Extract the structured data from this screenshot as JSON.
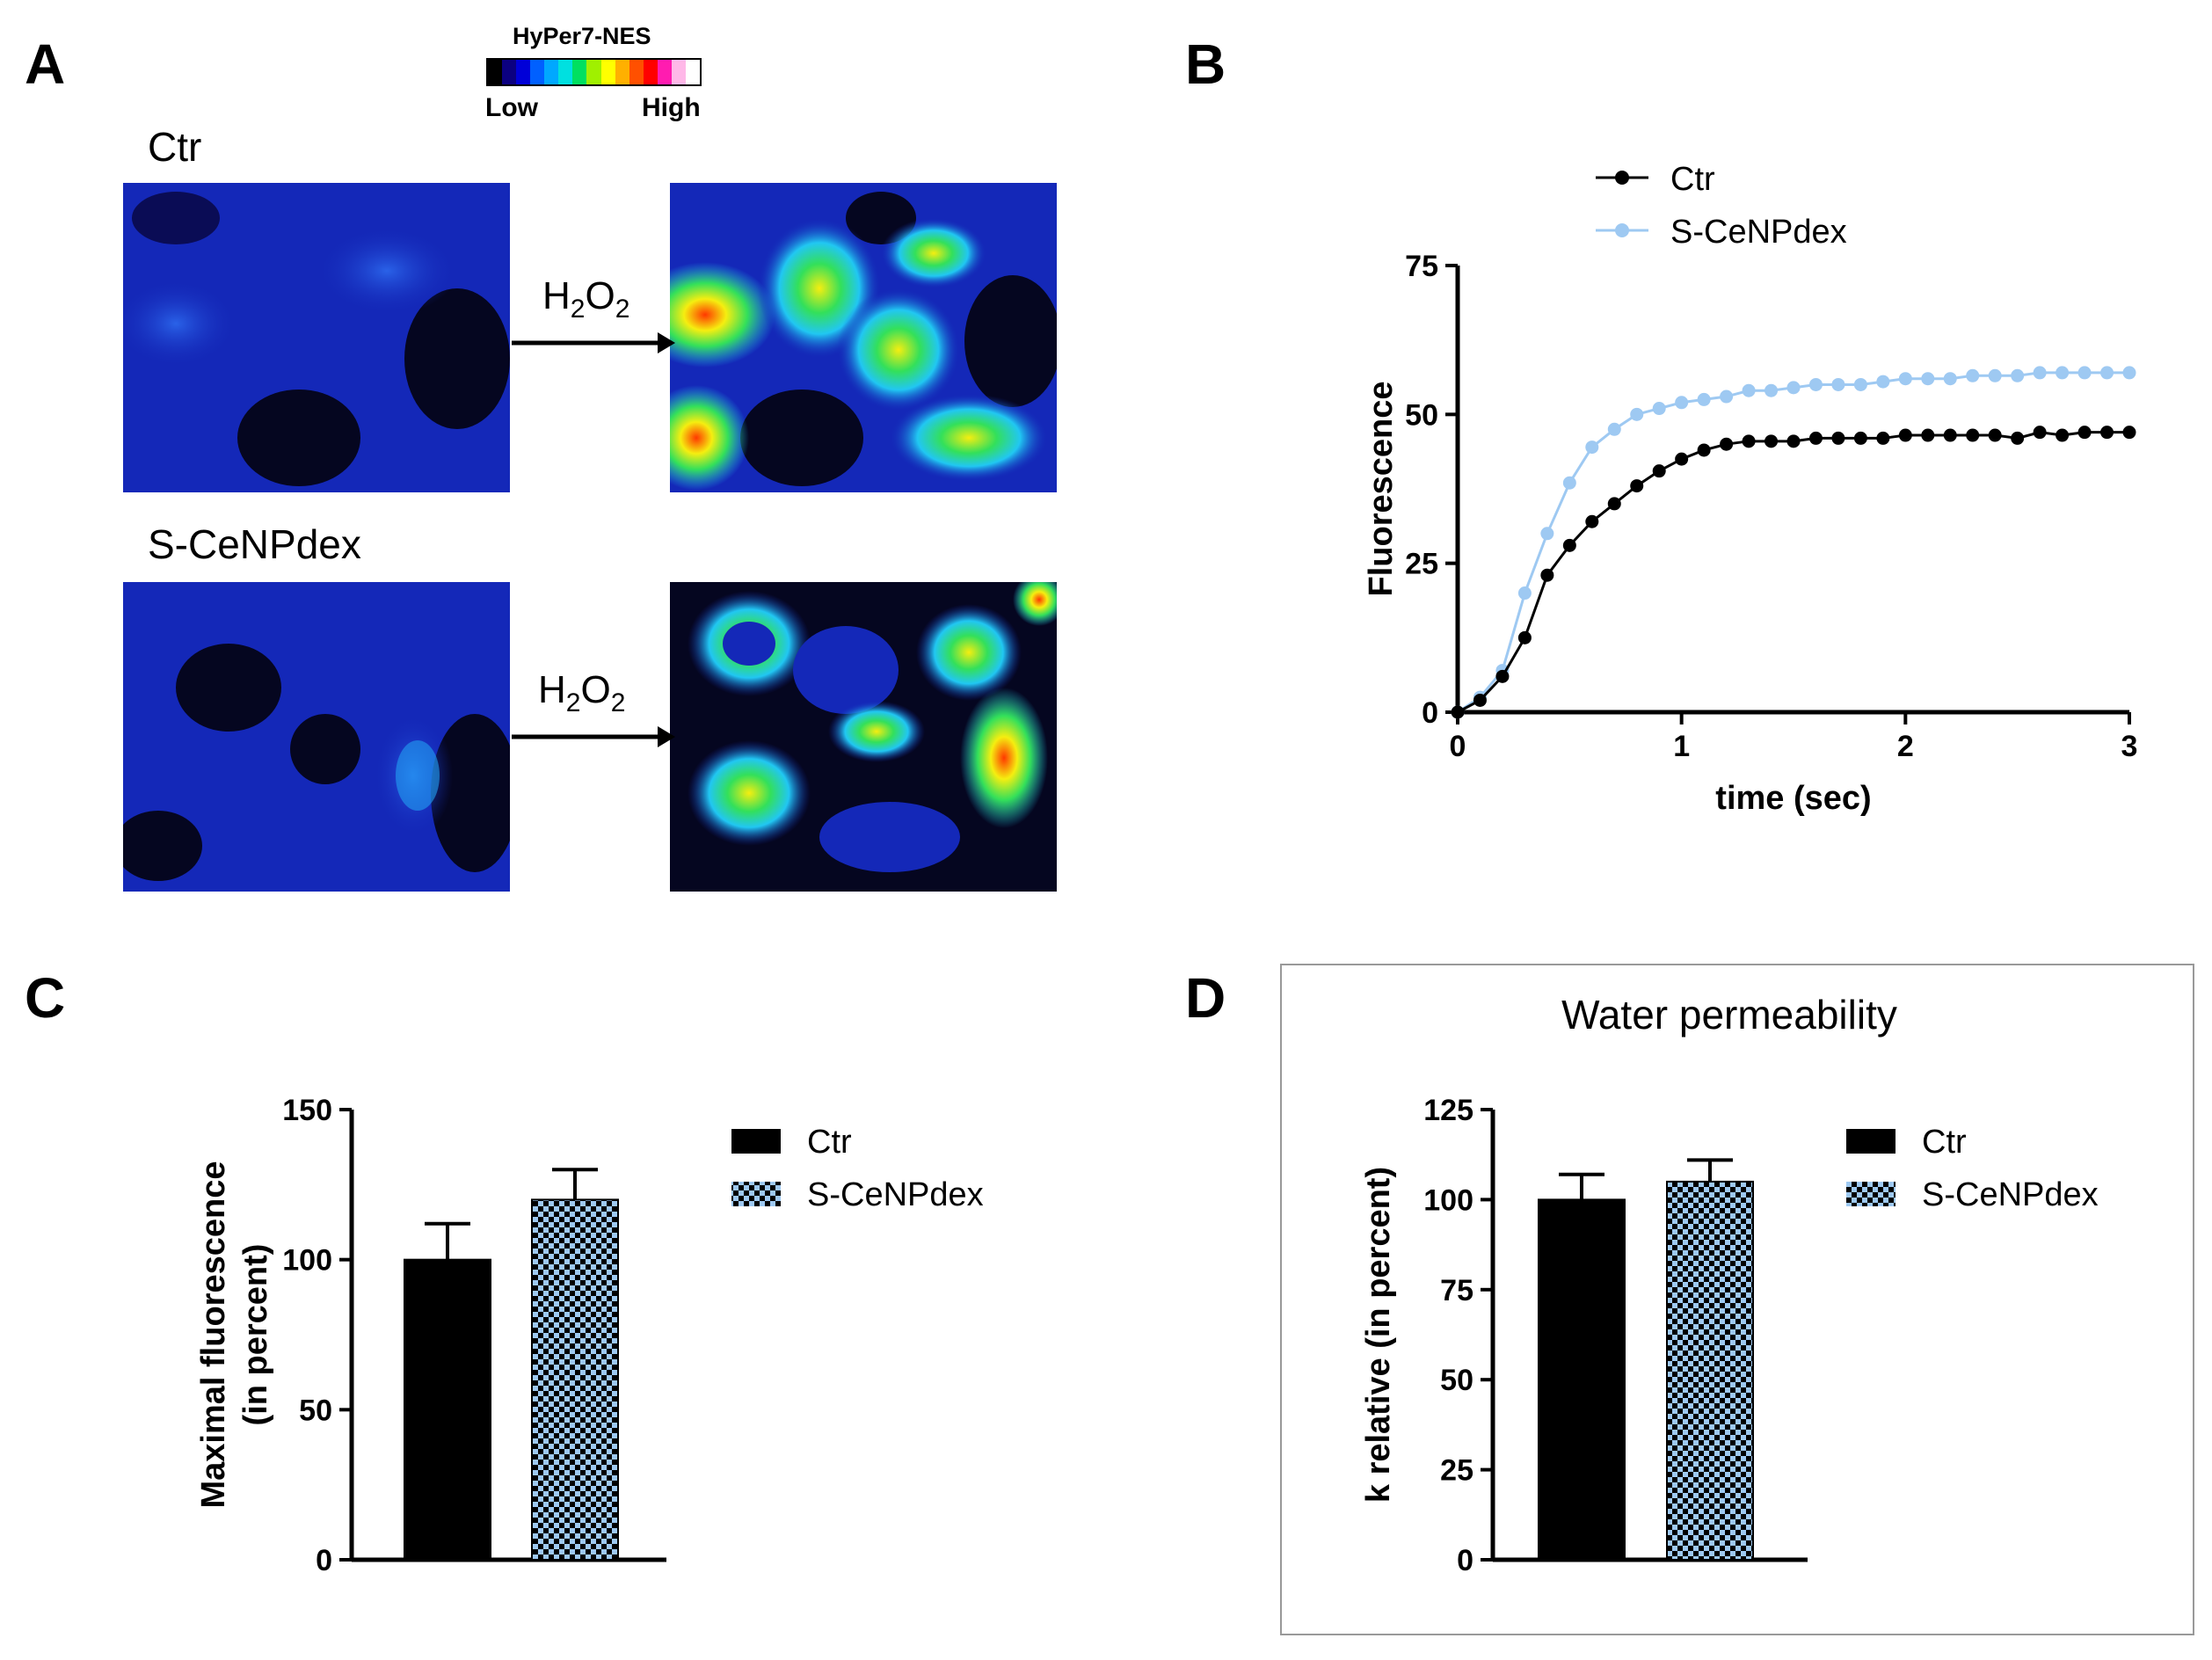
{
  "panels": {
    "a": "A",
    "b": "B",
    "c": "C",
    "d": "D"
  },
  "panel_a": {
    "colorbar_title": "HyPer7-NES",
    "colorbar_low": "Low",
    "colorbar_high": "High",
    "colorbar_colors": [
      "#000000",
      "#0b0080",
      "#0000d8",
      "#0060ff",
      "#00a8ff",
      "#00e0e0",
      "#00e060",
      "#a0f000",
      "#ffff00",
      "#ffb000",
      "#ff5000",
      "#ff0000",
      "#ff1cb0",
      "#ffb8e8",
      "#ffffff"
    ],
    "row1_label": "Ctr",
    "row2_label": "S-CeNPdex",
    "stimulus": "H",
    "stimulus_sub1": "2",
    "stimulus_mid": "O",
    "stimulus_sub2": "2",
    "heatmap_palette": {
      "background": "#050620",
      "low": "#1428b8",
      "mid": "#21c7f2",
      "high": "#f5ee10",
      "peak": "#ff3800"
    }
  },
  "chart_data": [
    {
      "type": "line",
      "panel": "B",
      "xlabel": "time (sec)",
      "ylabel": "Fluorescence",
      "xlim": [
        0,
        3
      ],
      "ylim": [
        0,
        75
      ],
      "xticks": [
        0,
        1,
        2,
        3
      ],
      "yticks": [
        0,
        25,
        50,
        75
      ],
      "legend_position": "top-left",
      "x": [
        0,
        0.1,
        0.2,
        0.3,
        0.4,
        0.5,
        0.6,
        0.7,
        0.8,
        0.9,
        1.0,
        1.1,
        1.2,
        1.3,
        1.4,
        1.5,
        1.6,
        1.7,
        1.8,
        1.9,
        2.0,
        2.1,
        2.2,
        2.3,
        2.4,
        2.5,
        2.6,
        2.7,
        2.8,
        2.9,
        3.0
      ],
      "series": [
        {
          "name": "Ctr",
          "color": "#000000",
          "values": [
            0,
            2,
            6,
            12.5,
            23,
            28,
            32,
            35,
            38,
            40.5,
            42.5,
            44,
            45,
            45.5,
            45.5,
            45.5,
            46,
            46,
            46,
            46,
            46.5,
            46.5,
            46.5,
            46.5,
            46.5,
            46,
            47,
            46.5,
            47,
            47,
            47
          ]
        },
        {
          "name": "S-CeNPdex",
          "color": "#9ec9f2",
          "values": [
            0,
            2.5,
            7,
            20,
            30,
            38.5,
            44.5,
            47.5,
            50,
            51,
            52,
            52.5,
            53,
            54,
            54,
            54.5,
            55,
            55,
            55,
            55.5,
            56,
            56,
            56,
            56.5,
            56.5,
            56.5,
            57,
            57,
            57,
            57,
            57
          ]
        }
      ]
    },
    {
      "type": "bar",
      "panel": "C",
      "categories": [
        "Ctr",
        "S-CeNPdex"
      ],
      "values": [
        100,
        120
      ],
      "errors": [
        12,
        10
      ],
      "ylabel_line1": "Maximal fluorescence",
      "ylabel_line2": "(in percent)",
      "ylim": [
        0,
        150
      ],
      "yticks": [
        0,
        50,
        100,
        150
      ],
      "legend": [
        "Ctr",
        "S-CeNPdex"
      ],
      "legend_position": "right",
      "colors": [
        "#000000",
        "#9ec9f2"
      ]
    },
    {
      "type": "bar",
      "panel": "D",
      "title": "Water permeability",
      "categories": [
        "Ctr",
        "S-CeNPdex"
      ],
      "values": [
        100,
        105
      ],
      "errors": [
        7,
        6
      ],
      "ylabel": "k relative (in percent)",
      "ylim": [
        0,
        125
      ],
      "yticks": [
        0,
        25,
        50,
        75,
        100,
        125
      ],
      "legend": [
        "Ctr",
        "S-CeNPdex"
      ],
      "legend_position": "right",
      "colors": [
        "#000000",
        "#9ec9f2"
      ]
    }
  ]
}
